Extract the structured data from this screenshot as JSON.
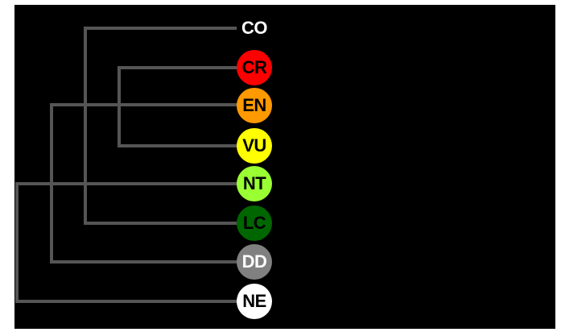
{
  "categories": [
    {
      "code": "CO",
      "fill": "#000000",
      "text_color": "#ffffff"
    },
    {
      "code": "CR",
      "fill": "#ff0000",
      "text_color": "#000000"
    },
    {
      "code": "EN",
      "fill": "#ff9900",
      "text_color": "#000000"
    },
    {
      "code": "VU",
      "fill": "#ffff00",
      "text_color": "#000000"
    },
    {
      "code": "NT",
      "fill": "#99ff33",
      "text_color": "#000000"
    },
    {
      "code": "LC",
      "fill": "#006600",
      "text_color": "#000000"
    },
    {
      "code": "DD",
      "fill": "#808080",
      "text_color": "#ffffff"
    },
    {
      "code": "NE",
      "fill": "#ffffff",
      "text_color": "#000000"
    }
  ],
  "colors": {
    "background": "#000000",
    "branch": "#555555"
  }
}
